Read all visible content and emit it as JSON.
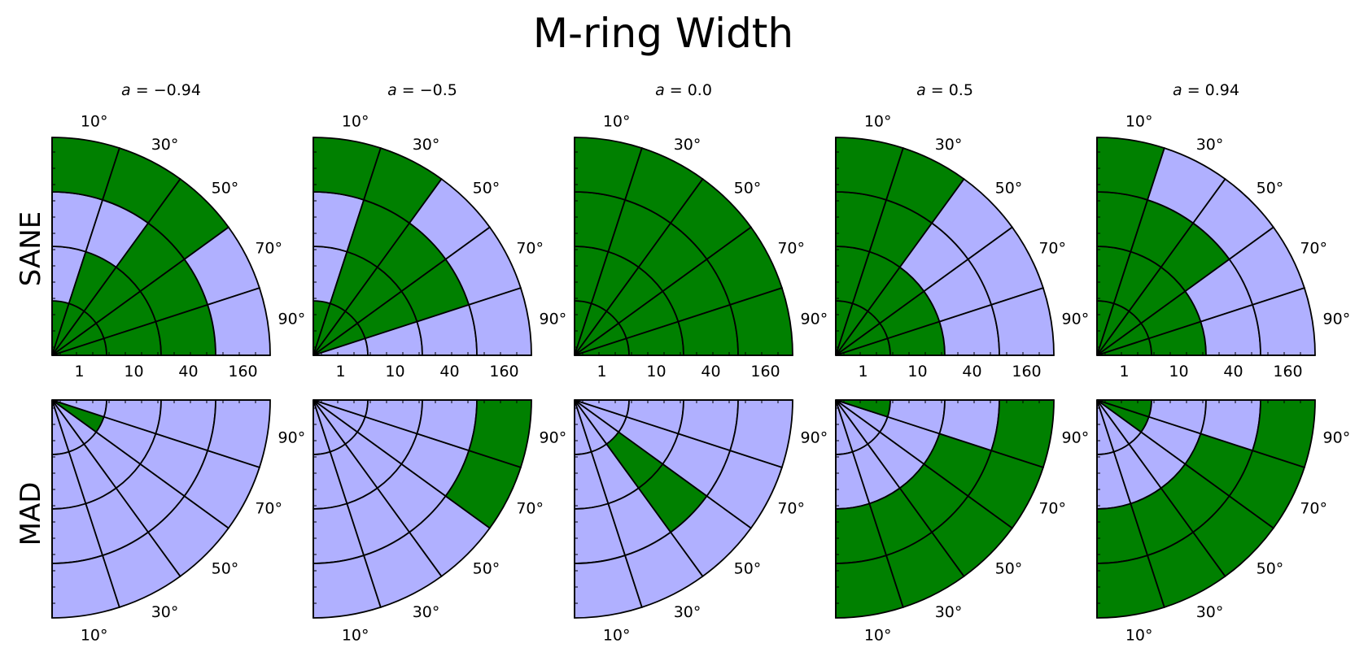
{
  "title": "M-ring Width",
  "colors": {
    "match": "#008000",
    "nomatch": "#b0b0ff"
  },
  "chart_data": {
    "type": "heatmap",
    "title": "M-ring Width",
    "rows": [
      "SANE",
      "MAD"
    ],
    "columns": [
      "a = −0.94",
      "a = −0.5",
      "a = 0.0",
      "a = 0.5",
      "a = 0.94"
    ],
    "column_labels": [
      {
        "prefix": "a = ",
        "value": "−0.94"
      },
      {
        "prefix": "a = ",
        "value": "−0.5"
      },
      {
        "prefix": "a = ",
        "value": "0.0"
      },
      {
        "prefix": "a = ",
        "value": "0.5"
      },
      {
        "prefix": "a = ",
        "value": "0.94"
      }
    ],
    "inclination_ticks": [
      "10°",
      "30°",
      "50°",
      "70°",
      "90°"
    ],
    "inclinations": [
      10,
      30,
      50,
      70,
      90
    ],
    "rhigh_ticks": [
      "1",
      "10",
      "40",
      "160"
    ],
    "rhigh": [
      1,
      10,
      40,
      160
    ],
    "legend": "none",
    "cell_layout": "rings index R_high (inner 1 → outer 160); sectors index inclination (10° → 90°)",
    "values_note": "1 = green (match), 0 = light blue (no match)",
    "grid": {
      "SANE": [
        [
          [
            1,
            1,
            1,
            1,
            1
          ],
          [
            0,
            1,
            1,
            1,
            1
          ],
          [
            0,
            0,
            1,
            1,
            1
          ],
          [
            1,
            1,
            1,
            0,
            0
          ]
        ],
        [
          [
            1,
            1,
            1,
            1,
            0
          ],
          [
            0,
            1,
            1,
            1,
            0
          ],
          [
            0,
            1,
            1,
            1,
            0
          ],
          [
            1,
            1,
            0,
            0,
            0
          ]
        ],
        [
          [
            1,
            1,
            1,
            1,
            1
          ],
          [
            1,
            1,
            1,
            1,
            1
          ],
          [
            1,
            1,
            1,
            1,
            1
          ],
          [
            1,
            1,
            1,
            1,
            1
          ]
        ],
        [
          [
            1,
            1,
            1,
            1,
            1
          ],
          [
            1,
            1,
            1,
            1,
            1
          ],
          [
            1,
            1,
            0,
            0,
            0
          ],
          [
            1,
            1,
            0,
            0,
            0
          ]
        ],
        [
          [
            1,
            1,
            1,
            1,
            1
          ],
          [
            1,
            1,
            1,
            1,
            1
          ],
          [
            1,
            1,
            1,
            0,
            0
          ],
          [
            1,
            0,
            0,
            0,
            0
          ]
        ]
      ],
      "MAD": [
        [
          [
            0,
            0,
            0,
            1,
            0
          ],
          [
            0,
            0,
            0,
            0,
            0
          ],
          [
            0,
            0,
            0,
            0,
            0
          ],
          [
            0,
            0,
            0,
            0,
            0
          ]
        ],
        [
          [
            0,
            0,
            0,
            0,
            0
          ],
          [
            0,
            0,
            0,
            0,
            0
          ],
          [
            0,
            0,
            0,
            0,
            0
          ],
          [
            0,
            0,
            0,
            1,
            1
          ]
        ],
        [
          [
            0,
            0,
            0,
            0,
            0
          ],
          [
            0,
            0,
            1,
            0,
            0
          ],
          [
            0,
            0,
            1,
            0,
            0
          ],
          [
            0,
            0,
            0,
            0,
            0
          ]
        ],
        [
          [
            0,
            0,
            0,
            0,
            1
          ],
          [
            0,
            0,
            0,
            0,
            0
          ],
          [
            1,
            1,
            1,
            1,
            0
          ],
          [
            1,
            1,
            1,
            1,
            1
          ]
        ],
        [
          [
            0,
            0,
            0,
            1,
            1
          ],
          [
            0,
            0,
            0,
            0,
            0
          ],
          [
            1,
            1,
            1,
            1,
            0
          ],
          [
            1,
            1,
            1,
            1,
            1
          ]
        ]
      ]
    }
  }
}
